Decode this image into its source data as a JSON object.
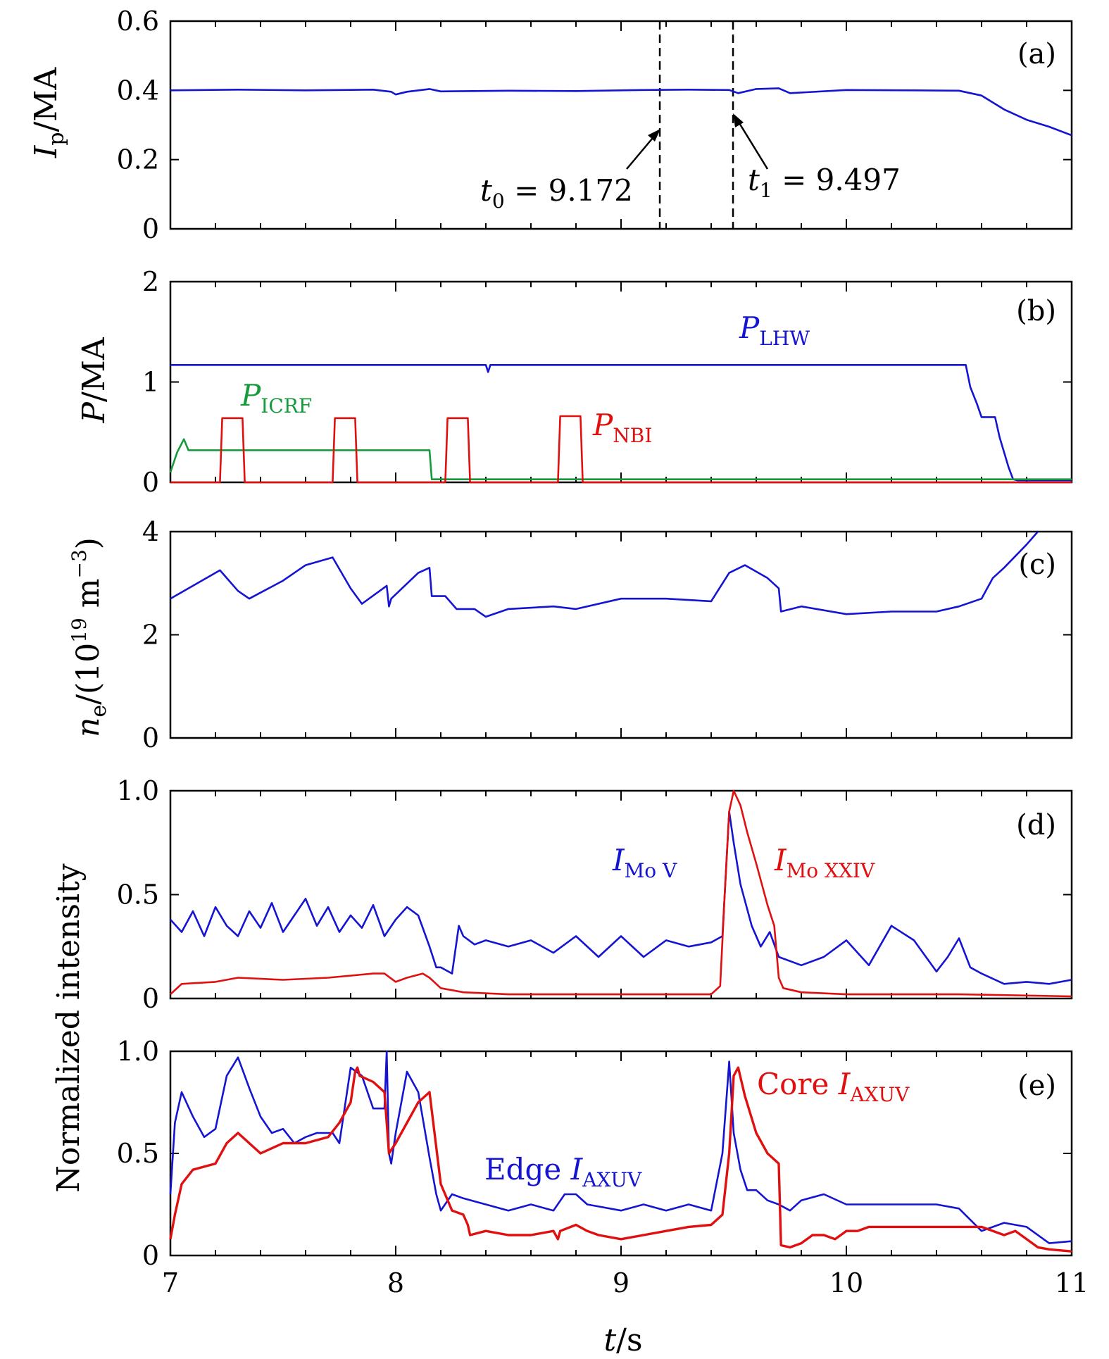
{
  "figure": {
    "xlabel": "t/s",
    "ylabel_shared": "Normalized intensity"
  },
  "colors": {
    "blue": "#1414d2",
    "red": "#e01010",
    "green": "#169a3c"
  },
  "chart_data": [
    {
      "type": "line",
      "tag": "(a)",
      "ylabel": "Ip/MA",
      "xlim": [
        7,
        11
      ],
      "ylim": [
        0,
        0.6
      ],
      "yticks": [
        "0",
        "0.2",
        "0.4",
        "0.6"
      ],
      "vlines": [
        9.172,
        9.497
      ],
      "annotations": [
        {
          "text": "t0 = 9.172",
          "x": 9.172
        },
        {
          "text": "t1 = 9.497",
          "x": 9.497
        }
      ],
      "series": [
        {
          "name": "Ip",
          "color": "blue",
          "x": [
            7.0,
            7.3,
            7.6,
            7.9,
            7.98,
            8.0,
            8.05,
            8.15,
            8.2,
            8.5,
            8.8,
            9.1,
            9.3,
            9.48,
            9.52,
            9.6,
            9.7,
            9.75,
            10.0,
            10.3,
            10.5,
            10.6,
            10.7,
            10.8,
            10.9,
            11.0
          ],
          "y": [
            0.4,
            0.402,
            0.4,
            0.402,
            0.396,
            0.388,
            0.396,
            0.404,
            0.397,
            0.399,
            0.398,
            0.401,
            0.402,
            0.401,
            0.392,
            0.404,
            0.406,
            0.392,
            0.401,
            0.4,
            0.399,
            0.385,
            0.345,
            0.315,
            0.295,
            0.27
          ]
        }
      ]
    },
    {
      "type": "line",
      "tag": "(b)",
      "ylabel": "P/MA",
      "xlim": [
        7,
        11
      ],
      "ylim": [
        0,
        2
      ],
      "yticks": [
        "0",
        "1",
        "2"
      ],
      "series": [
        {
          "name": "LHW",
          "label": "PLHW",
          "color": "blue",
          "x": [
            7.0,
            8.4,
            8.41,
            8.42,
            10.5,
            10.53,
            10.55,
            10.58,
            10.6,
            10.66,
            10.68,
            10.72,
            10.74,
            10.76,
            11.0
          ],
          "y": [
            1.17,
            1.17,
            1.1,
            1.17,
            1.17,
            1.17,
            0.95,
            0.78,
            0.65,
            0.65,
            0.45,
            0.15,
            0.03,
            0.02,
            0.02
          ]
        },
        {
          "name": "ICRF",
          "label": "PICRF",
          "color": "green",
          "x": [
            7.0,
            7.03,
            7.06,
            7.08,
            7.1,
            8.15,
            8.16,
            8.3,
            11.0
          ],
          "y": [
            0.1,
            0.3,
            0.43,
            0.32,
            0.32,
            0.32,
            0.03,
            0.03,
            0.03
          ]
        },
        {
          "name": "NBI",
          "label": "PNBI",
          "color": "red",
          "x": [
            7.0,
            7.22,
            7.23,
            7.32,
            7.33,
            7.72,
            7.73,
            7.82,
            7.83,
            8.22,
            8.23,
            8.32,
            8.33,
            8.72,
            8.73,
            8.82,
            8.83,
            11.0
          ],
          "y": [
            0.0,
            0.0,
            0.64,
            0.64,
            0.0,
            0.0,
            0.64,
            0.64,
            0.0,
            0.0,
            0.64,
            0.64,
            0.0,
            0.0,
            0.66,
            0.66,
            0.0,
            0.0
          ]
        }
      ]
    },
    {
      "type": "line",
      "tag": "(c)",
      "ylabel": "ne/(10^19 m^-3)",
      "xlim": [
        7,
        11
      ],
      "ylim": [
        0,
        4
      ],
      "yticks": [
        "0",
        "2",
        "4"
      ],
      "series": [
        {
          "name": "ne",
          "color": "blue",
          "x": [
            7.0,
            7.1,
            7.22,
            7.3,
            7.35,
            7.5,
            7.6,
            7.72,
            7.8,
            7.85,
            7.96,
            7.97,
            7.98,
            8.1,
            8.15,
            8.16,
            8.22,
            8.27,
            8.35,
            8.4,
            8.5,
            8.7,
            8.8,
            9.0,
            9.2,
            9.4,
            9.48,
            9.55,
            9.65,
            9.7,
            9.71,
            9.8,
            10.0,
            10.2,
            10.4,
            10.5,
            10.6,
            10.65,
            10.7,
            10.8,
            10.85
          ],
          "y": [
            2.7,
            2.95,
            3.25,
            2.85,
            2.7,
            3.05,
            3.35,
            3.5,
            2.9,
            2.6,
            2.95,
            2.55,
            2.7,
            3.2,
            3.3,
            2.75,
            2.75,
            2.5,
            2.5,
            2.35,
            2.5,
            2.55,
            2.5,
            2.7,
            2.7,
            2.65,
            3.2,
            3.35,
            3.1,
            2.9,
            2.45,
            2.55,
            2.4,
            2.45,
            2.45,
            2.55,
            2.7,
            3.1,
            3.3,
            3.75,
            4.0
          ]
        }
      ]
    },
    {
      "type": "line",
      "tag": "(d)",
      "ylabel": "Normalized intensity",
      "xlim": [
        7,
        11
      ],
      "ylim": [
        0,
        1
      ],
      "yticks": [
        "0",
        "0.5",
        "1.0"
      ],
      "series": [
        {
          "name": "Mo V",
          "label": "IMo V",
          "color": "blue",
          "x": [
            7.0,
            7.05,
            7.1,
            7.15,
            7.2,
            7.25,
            7.3,
            7.35,
            7.4,
            7.45,
            7.5,
            7.55,
            7.6,
            7.65,
            7.7,
            7.75,
            7.8,
            7.85,
            7.9,
            7.95,
            8.0,
            8.05,
            8.1,
            8.15,
            8.18,
            8.2,
            8.25,
            8.28,
            8.3,
            8.35,
            8.4,
            8.5,
            8.6,
            8.7,
            8.8,
            8.9,
            9.0,
            9.1,
            9.2,
            9.3,
            9.4,
            9.45,
            9.48,
            9.5,
            9.53,
            9.58,
            9.62,
            9.66,
            9.7,
            9.8,
            9.9,
            10.0,
            10.1,
            10.2,
            10.3,
            10.4,
            10.45,
            10.5,
            10.55,
            10.6,
            10.7,
            10.8,
            10.9,
            11.0
          ],
          "y": [
            0.38,
            0.32,
            0.42,
            0.3,
            0.44,
            0.35,
            0.3,
            0.42,
            0.34,
            0.46,
            0.32,
            0.4,
            0.48,
            0.35,
            0.44,
            0.32,
            0.4,
            0.34,
            0.45,
            0.3,
            0.38,
            0.44,
            0.4,
            0.25,
            0.15,
            0.15,
            0.12,
            0.35,
            0.3,
            0.26,
            0.28,
            0.25,
            0.28,
            0.22,
            0.3,
            0.2,
            0.3,
            0.2,
            0.28,
            0.25,
            0.27,
            0.3,
            0.9,
            0.75,
            0.55,
            0.35,
            0.25,
            0.32,
            0.2,
            0.16,
            0.2,
            0.28,
            0.16,
            0.35,
            0.28,
            0.13,
            0.2,
            0.29,
            0.15,
            0.12,
            0.07,
            0.08,
            0.07,
            0.09
          ]
        },
        {
          "name": "Mo XXIV",
          "label": "IMo XXIV",
          "color": "red",
          "x": [
            7.0,
            7.05,
            7.2,
            7.3,
            7.5,
            7.7,
            7.9,
            7.95,
            8.0,
            8.05,
            8.12,
            8.15,
            8.2,
            8.3,
            8.5,
            8.7,
            9.0,
            9.2,
            9.4,
            9.44,
            9.46,
            9.48,
            9.5,
            9.53,
            9.56,
            9.6,
            9.65,
            9.68,
            9.7,
            9.72,
            9.8,
            10.0,
            10.5,
            11.0
          ],
          "y": [
            0.02,
            0.07,
            0.08,
            0.1,
            0.09,
            0.1,
            0.12,
            0.12,
            0.08,
            0.1,
            0.12,
            0.1,
            0.05,
            0.03,
            0.02,
            0.02,
            0.02,
            0.02,
            0.02,
            0.06,
            0.5,
            0.9,
            1.0,
            0.93,
            0.8,
            0.65,
            0.45,
            0.35,
            0.1,
            0.05,
            0.03,
            0.02,
            0.02,
            0.01
          ]
        }
      ]
    },
    {
      "type": "line",
      "tag": "(e)",
      "ylabel": "Normalized intensity",
      "xlim": [
        7,
        11
      ],
      "ylim": [
        0,
        1
      ],
      "yticks": [
        "0",
        "0.5",
        "1.0"
      ],
      "series": [
        {
          "name": "Edge AXUV",
          "label": "Edge IAXUV",
          "color": "blue",
          "x": [
            7.0,
            7.02,
            7.05,
            7.1,
            7.15,
            7.2,
            7.25,
            7.3,
            7.35,
            7.4,
            7.45,
            7.5,
            7.55,
            7.6,
            7.65,
            7.7,
            7.72,
            7.75,
            7.8,
            7.85,
            7.9,
            7.95,
            7.96,
            7.97,
            7.98,
            8.0,
            8.05,
            8.1,
            8.15,
            8.18,
            8.2,
            8.25,
            8.3,
            8.4,
            8.5,
            8.6,
            8.7,
            8.75,
            8.8,
            8.85,
            8.9,
            9.0,
            9.1,
            9.2,
            9.3,
            9.4,
            9.45,
            9.48,
            9.5,
            9.53,
            9.56,
            9.6,
            9.65,
            9.7,
            9.75,
            9.8,
            9.9,
            10.0,
            10.2,
            10.4,
            10.5,
            10.6,
            10.7,
            10.8,
            10.9,
            11.0
          ],
          "y": [
            0.3,
            0.65,
            0.8,
            0.68,
            0.58,
            0.62,
            0.88,
            0.97,
            0.82,
            0.68,
            0.6,
            0.62,
            0.55,
            0.58,
            0.6,
            0.6,
            0.6,
            0.55,
            0.92,
            0.88,
            0.72,
            0.72,
            1.0,
            0.5,
            0.45,
            0.6,
            0.9,
            0.8,
            0.48,
            0.3,
            0.22,
            0.3,
            0.28,
            0.25,
            0.22,
            0.25,
            0.22,
            0.3,
            0.3,
            0.25,
            0.24,
            0.22,
            0.25,
            0.22,
            0.25,
            0.22,
            0.5,
            0.95,
            0.6,
            0.42,
            0.32,
            0.32,
            0.27,
            0.25,
            0.22,
            0.27,
            0.3,
            0.25,
            0.25,
            0.25,
            0.23,
            0.12,
            0.16,
            0.14,
            0.06,
            0.07
          ]
        },
        {
          "name": "Core AXUV",
          "label": "Core IAXUV",
          "color": "red",
          "x": [
            7.0,
            7.02,
            7.05,
            7.1,
            7.2,
            7.25,
            7.3,
            7.35,
            7.4,
            7.5,
            7.6,
            7.7,
            7.75,
            7.8,
            7.82,
            7.83,
            7.84,
            7.9,
            7.95,
            7.97,
            8.0,
            8.05,
            8.1,
            8.15,
            8.2,
            8.25,
            8.3,
            8.32,
            8.33,
            8.4,
            8.5,
            8.6,
            8.7,
            8.72,
            8.73,
            8.8,
            8.85,
            8.9,
            9.0,
            9.1,
            9.2,
            9.3,
            9.4,
            9.45,
            9.48,
            9.5,
            9.52,
            9.55,
            9.6,
            9.65,
            9.7,
            9.71,
            9.75,
            9.8,
            9.85,
            9.9,
            9.95,
            10.0,
            10.05,
            10.1,
            10.2,
            10.3,
            10.5,
            10.6,
            10.7,
            10.75,
            10.8,
            10.85,
            10.9,
            11.0
          ],
          "y": [
            0.08,
            0.2,
            0.35,
            0.42,
            0.45,
            0.55,
            0.6,
            0.55,
            0.5,
            0.55,
            0.55,
            0.58,
            0.65,
            0.75,
            0.9,
            0.92,
            0.88,
            0.85,
            0.8,
            0.5,
            0.55,
            0.65,
            0.75,
            0.8,
            0.35,
            0.22,
            0.2,
            0.15,
            0.1,
            0.12,
            0.1,
            0.1,
            0.12,
            0.08,
            0.12,
            0.15,
            0.12,
            0.1,
            0.08,
            0.1,
            0.12,
            0.14,
            0.15,
            0.2,
            0.5,
            0.88,
            0.92,
            0.78,
            0.6,
            0.5,
            0.45,
            0.05,
            0.04,
            0.06,
            0.1,
            0.1,
            0.08,
            0.12,
            0.12,
            0.14,
            0.14,
            0.14,
            0.14,
            0.14,
            0.1,
            0.12,
            0.08,
            0.04,
            0.03,
            0.02
          ]
        }
      ]
    }
  ]
}
